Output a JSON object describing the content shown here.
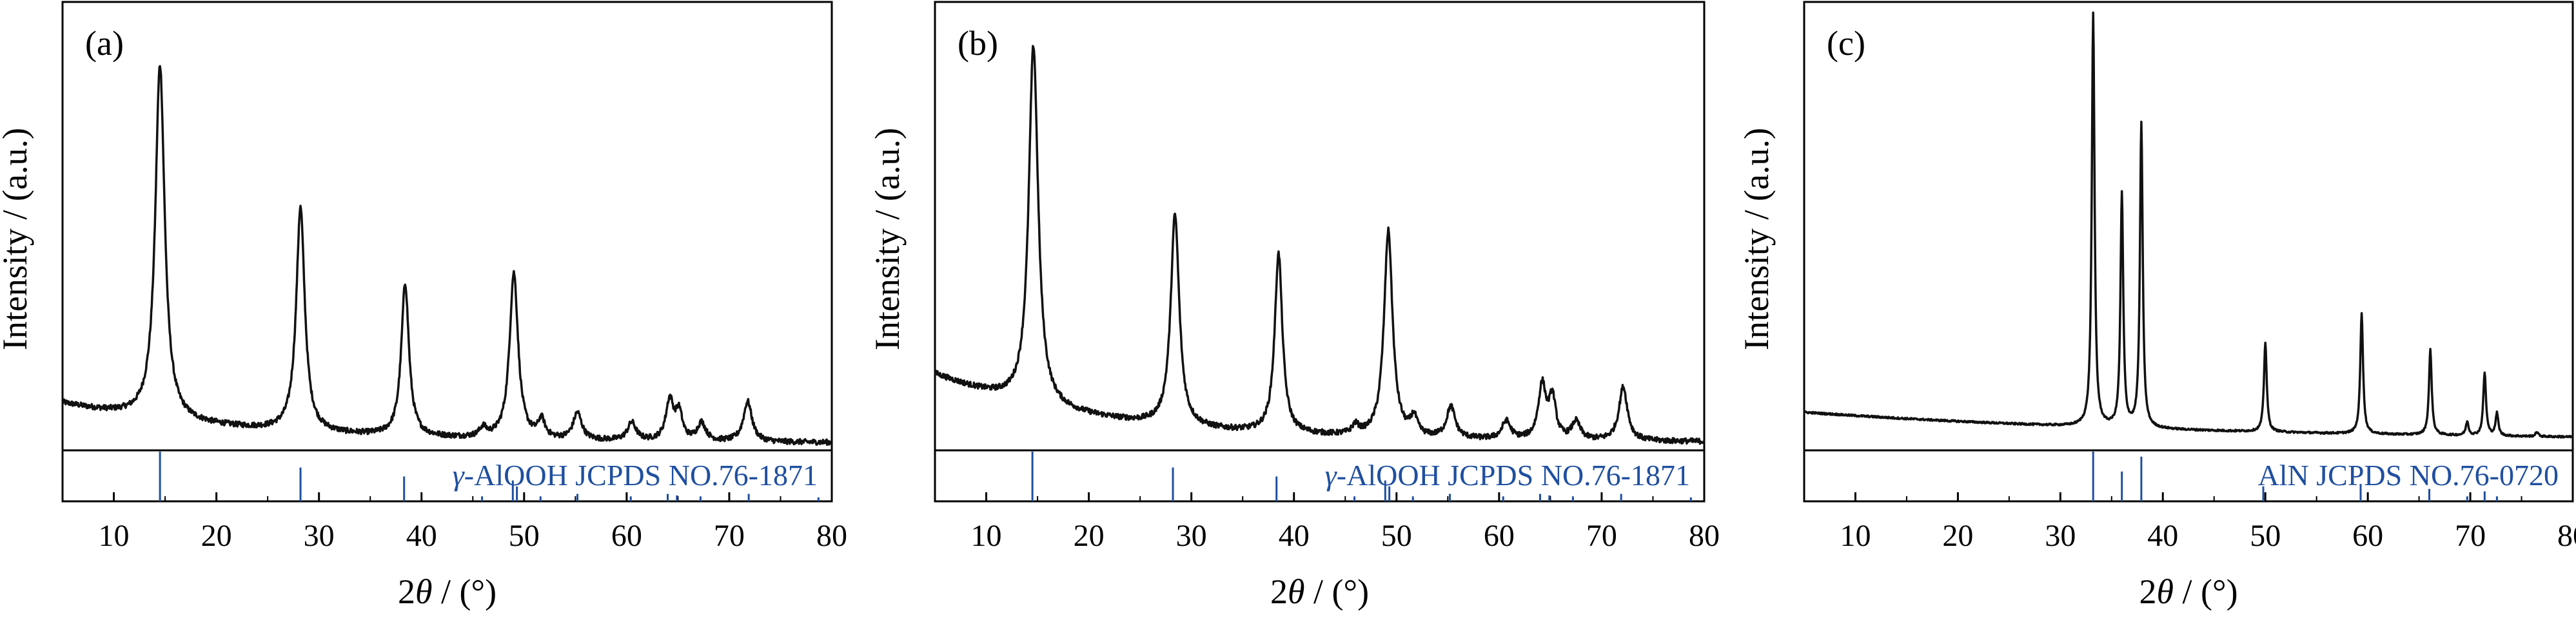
{
  "chart_data": [
    {
      "type": "line",
      "panel_label": "(a)",
      "xlabel_parts": [
        "2",
        "θ",
        " / (°)"
      ],
      "ylabel": "Intensity / (a.u.)",
      "xlim": [
        5,
        80
      ],
      "xticks": [
        10,
        20,
        30,
        40,
        50,
        60,
        70,
        80
      ],
      "line_color": "#111111",
      "ref_color": "#1f4fa0",
      "baseline": {
        "start": 0.105,
        "end": 0.016,
        "decay": 18
      },
      "noise": 0.006,
      "peaks": [
        {
          "x": 14.5,
          "y": 0.79,
          "w": 0.55
        },
        {
          "x": 28.2,
          "y": 0.5,
          "w": 0.5
        },
        {
          "x": 38.4,
          "y": 0.34,
          "w": 0.45
        },
        {
          "x": 46.0,
          "y": 0.02,
          "w": 0.4
        },
        {
          "x": 49.0,
          "y": 0.37,
          "w": 0.5
        },
        {
          "x": 51.7,
          "y": 0.04,
          "w": 0.4
        },
        {
          "x": 55.2,
          "y": 0.06,
          "w": 0.5
        },
        {
          "x": 60.5,
          "y": 0.04,
          "w": 0.5
        },
        {
          "x": 64.2,
          "y": 0.09,
          "w": 0.45
        },
        {
          "x": 65.1,
          "y": 0.06,
          "w": 0.4
        },
        {
          "x": 67.3,
          "y": 0.04,
          "w": 0.5
        },
        {
          "x": 71.8,
          "y": 0.09,
          "w": 0.5
        }
      ],
      "reference": {
        "label_parts": [
          "γ",
          "-AlOOH JCPDS NO.76-1871"
        ],
        "lines": [
          {
            "x": 14.5,
            "h": 1.0
          },
          {
            "x": 28.2,
            "h": 0.68
          },
          {
            "x": 38.3,
            "h": 0.5
          },
          {
            "x": 45.9,
            "h": 0.1
          },
          {
            "x": 48.9,
            "h": 0.42
          },
          {
            "x": 49.3,
            "h": 0.3
          },
          {
            "x": 51.6,
            "h": 0.1
          },
          {
            "x": 55.2,
            "h": 0.15
          },
          {
            "x": 60.4,
            "h": 0.1
          },
          {
            "x": 64.0,
            "h": 0.15
          },
          {
            "x": 64.9,
            "h": 0.12
          },
          {
            "x": 67.2,
            "h": 0.1
          },
          {
            "x": 71.9,
            "h": 0.15
          },
          {
            "x": 78.7,
            "h": 0.08
          }
        ]
      }
    },
    {
      "type": "line",
      "panel_label": "(b)",
      "xlabel_parts": [
        "2",
        "θ",
        " / (°)"
      ],
      "ylabel": "Intensity / (a.u.)",
      "xlim": [
        5,
        80
      ],
      "xticks": [
        10,
        20,
        30,
        40,
        50,
        60,
        70,
        80
      ],
      "line_color": "#111111",
      "ref_color": "#1f4fa0",
      "baseline": {
        "start": 0.17,
        "end": 0.018,
        "decay": 16
      },
      "noise": 0.006,
      "peaks": [
        {
          "x": 14.6,
          "y": 0.8,
          "w": 0.55
        },
        {
          "x": 28.4,
          "y": 0.47,
          "w": 0.5
        },
        {
          "x": 38.5,
          "y": 0.4,
          "w": 0.45
        },
        {
          "x": 46.0,
          "y": 0.02,
          "w": 0.4
        },
        {
          "x": 49.2,
          "y": 0.46,
          "w": 0.5
        },
        {
          "x": 51.7,
          "y": 0.04,
          "w": 0.4
        },
        {
          "x": 55.3,
          "y": 0.07,
          "w": 0.5
        },
        {
          "x": 60.7,
          "y": 0.04,
          "w": 0.5
        },
        {
          "x": 64.2,
          "y": 0.12,
          "w": 0.45
        },
        {
          "x": 65.2,
          "y": 0.09,
          "w": 0.4
        },
        {
          "x": 67.5,
          "y": 0.04,
          "w": 0.5
        },
        {
          "x": 72.1,
          "y": 0.12,
          "w": 0.5
        }
      ],
      "reference": {
        "label_parts": [
          "γ",
          "-AlOOH JCPDS NO.76-1871"
        ],
        "lines": [
          {
            "x": 14.5,
            "h": 1.0
          },
          {
            "x": 28.2,
            "h": 0.68
          },
          {
            "x": 38.3,
            "h": 0.5
          },
          {
            "x": 45.9,
            "h": 0.1
          },
          {
            "x": 48.9,
            "h": 0.42
          },
          {
            "x": 49.3,
            "h": 0.3
          },
          {
            "x": 51.6,
            "h": 0.1
          },
          {
            "x": 55.2,
            "h": 0.15
          },
          {
            "x": 60.4,
            "h": 0.1
          },
          {
            "x": 64.0,
            "h": 0.15
          },
          {
            "x": 64.9,
            "h": 0.12
          },
          {
            "x": 67.2,
            "h": 0.1
          },
          {
            "x": 71.9,
            "h": 0.15
          },
          {
            "x": 78.7,
            "h": 0.08
          }
        ]
      }
    },
    {
      "type": "line",
      "panel_label": "(c)",
      "xlabel_parts": [
        "2",
        "θ",
        " / (°)"
      ],
      "ylabel": "Intensity / (a.u.)",
      "xlim": [
        5,
        80
      ],
      "xticks": [
        10,
        20,
        30,
        40,
        50,
        60,
        70,
        80
      ],
      "line_color": "#111111",
      "ref_color": "#1f4fa0",
      "baseline": {
        "start": 0.085,
        "end": 0.02,
        "decay": 40
      },
      "noise": 0.002,
      "peaks": [
        {
          "x": 33.2,
          "y": 0.92,
          "w": 0.16
        },
        {
          "x": 36.0,
          "y": 0.52,
          "w": 0.16
        },
        {
          "x": 37.9,
          "y": 0.68,
          "w": 0.16
        },
        {
          "x": 50.0,
          "y": 0.2,
          "w": 0.16
        },
        {
          "x": 59.4,
          "y": 0.27,
          "w": 0.16
        },
        {
          "x": 66.1,
          "y": 0.19,
          "w": 0.16
        },
        {
          "x": 69.7,
          "y": 0.03,
          "w": 0.16
        },
        {
          "x": 71.4,
          "y": 0.14,
          "w": 0.16
        },
        {
          "x": 72.6,
          "y": 0.05,
          "w": 0.16
        },
        {
          "x": 76.5,
          "y": 0.01,
          "w": 0.16
        }
      ],
      "reference": {
        "label_parts": [
          "",
          "AlN JCPDS NO.76-0720"
        ],
        "lines": [
          {
            "x": 33.2,
            "h": 1.0
          },
          {
            "x": 36.0,
            "h": 0.6
          },
          {
            "x": 37.9,
            "h": 0.9
          },
          {
            "x": 49.8,
            "h": 0.3
          },
          {
            "x": 59.3,
            "h": 0.35
          },
          {
            "x": 66.0,
            "h": 0.25
          },
          {
            "x": 69.7,
            "h": 0.1
          },
          {
            "x": 71.4,
            "h": 0.2
          },
          {
            "x": 72.6,
            "h": 0.1
          }
        ]
      }
    }
  ]
}
